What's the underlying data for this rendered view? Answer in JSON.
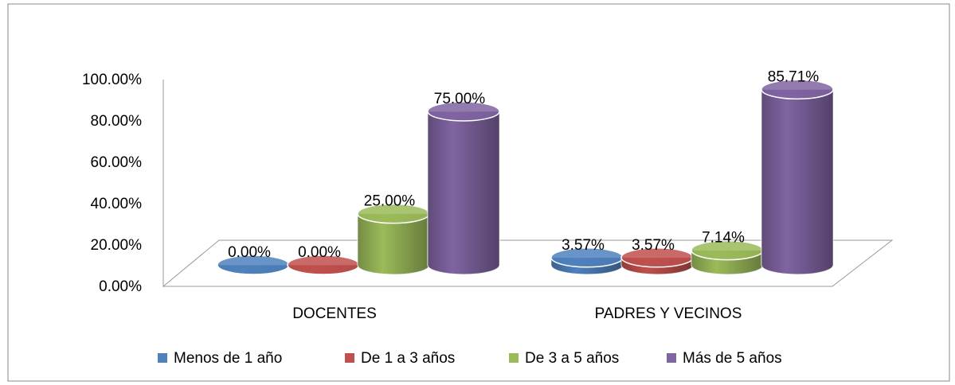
{
  "chart_data": {
    "type": "bar3d",
    "categories": [
      "DOCENTES",
      "PADRES Y VECINOS"
    ],
    "series": [
      {
        "name": "Menos de 1 año",
        "color": "#4f81bd",
        "values": [
          0,
          3.57
        ],
        "value_labels": [
          "0.00%",
          "3.57%"
        ]
      },
      {
        "name": "De 1 a 3 años",
        "color": "#c0504d",
        "values": [
          0,
          3.57
        ],
        "value_labels": [
          "0.00%",
          "3.57%"
        ]
      },
      {
        "name": "De 3 a 5 años",
        "color": "#9bbb59",
        "values": [
          25,
          7.14
        ],
        "value_labels": [
          "25.00%",
          "7.14%"
        ]
      },
      {
        "name": "Más de 5 años",
        "color": "#8064a2",
        "values": [
          75,
          85.71
        ],
        "value_labels": [
          "75.00%",
          "85.71%"
        ]
      }
    ],
    "ylim": [
      0,
      100
    ],
    "yticks": [
      {
        "value": 0,
        "label": "0.00%"
      },
      {
        "value": 20,
        "label": "20.00%"
      },
      {
        "value": 40,
        "label": "40.00%"
      },
      {
        "value": 60,
        "label": "60.00%"
      },
      {
        "value": 80,
        "label": "80.00%"
      },
      {
        "value": 100,
        "label": "100.00%"
      }
    ],
    "legend": "bottom"
  }
}
